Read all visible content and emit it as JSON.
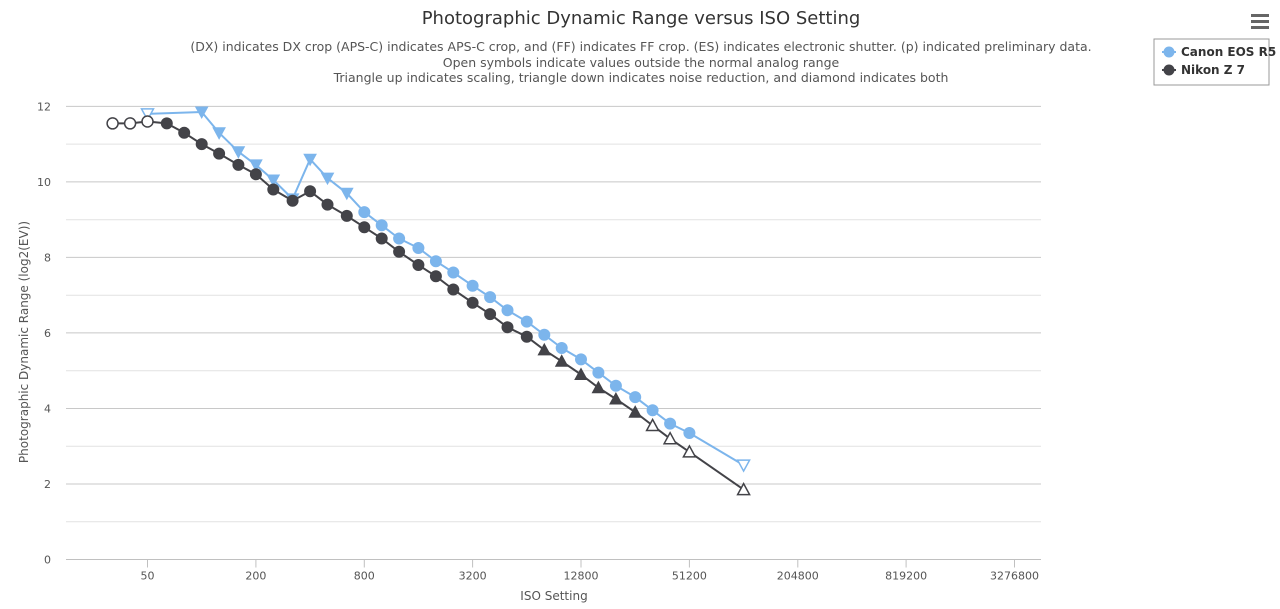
{
  "chart_data": {
    "type": "line",
    "title": "Photographic Dynamic Range versus ISO Setting",
    "subtitle": [
      "(DX) indicates DX crop (APS-C) indicates APS-C crop, and (FF) indicates FF crop. (ES) indicates electronic shutter. (p) indicated preliminary data.",
      "Open symbols indicate values outside the normal analog range",
      "Triangle up indicates scaling, triangle down indicates noise reduction, and diamond indicates both"
    ],
    "xlabel": "ISO Setting",
    "ylabel": "Photographic Dynamic Range (log2(EV))",
    "x_scale": "log2",
    "xlim": [
      25,
      4500000
    ],
    "ylim": [
      0,
      12.5
    ],
    "x_ticks": [
      "50",
      "200",
      "800",
      "3200",
      "12800",
      "51200",
      "204800",
      "819200",
      "3276800"
    ],
    "x_tick_values": [
      50,
      200,
      800,
      3200,
      12800,
      51200,
      204800,
      819200,
      3276800
    ],
    "y_ticks": [
      0,
      2,
      4,
      6,
      8,
      10,
      12
    ],
    "grid": "horizontal",
    "legend_position": "top-right",
    "series": [
      {
        "name": "Canon EOS R5",
        "color": "#7cb5ec",
        "points": [
          {
            "x": 50,
            "y": 11.8,
            "marker": "triangle-down-open"
          },
          {
            "x": 100,
            "y": 11.85,
            "marker": "triangle-down"
          },
          {
            "x": 125,
            "y": 11.3,
            "marker": "triangle-down"
          },
          {
            "x": 160,
            "y": 10.8,
            "marker": "triangle-down"
          },
          {
            "x": 200,
            "y": 10.45,
            "marker": "triangle-down"
          },
          {
            "x": 250,
            "y": 10.05,
            "marker": "triangle-down"
          },
          {
            "x": 320,
            "y": 9.55,
            "marker": "triangle-down"
          },
          {
            "x": 400,
            "y": 10.6,
            "marker": "triangle-down"
          },
          {
            "x": 500,
            "y": 10.1,
            "marker": "triangle-down"
          },
          {
            "x": 640,
            "y": 9.7,
            "marker": "triangle-down"
          },
          {
            "x": 800,
            "y": 9.2,
            "marker": "circle"
          },
          {
            "x": 1000,
            "y": 8.85,
            "marker": "circle"
          },
          {
            "x": 1250,
            "y": 8.5,
            "marker": "circle"
          },
          {
            "x": 1600,
            "y": 8.25,
            "marker": "circle"
          },
          {
            "x": 2000,
            "y": 7.9,
            "marker": "circle"
          },
          {
            "x": 2500,
            "y": 7.6,
            "marker": "circle"
          },
          {
            "x": 3200,
            "y": 7.25,
            "marker": "circle"
          },
          {
            "x": 4000,
            "y": 6.95,
            "marker": "circle"
          },
          {
            "x": 5000,
            "y": 6.6,
            "marker": "circle"
          },
          {
            "x": 6400,
            "y": 6.3,
            "marker": "circle"
          },
          {
            "x": 8000,
            "y": 5.95,
            "marker": "circle"
          },
          {
            "x": 10000,
            "y": 5.6,
            "marker": "circle"
          },
          {
            "x": 12800,
            "y": 5.3,
            "marker": "circle"
          },
          {
            "x": 16000,
            "y": 4.95,
            "marker": "circle"
          },
          {
            "x": 20000,
            "y": 4.6,
            "marker": "circle"
          },
          {
            "x": 25600,
            "y": 4.3,
            "marker": "circle"
          },
          {
            "x": 32000,
            "y": 3.95,
            "marker": "circle"
          },
          {
            "x": 40000,
            "y": 3.6,
            "marker": "circle"
          },
          {
            "x": 51200,
            "y": 3.35,
            "marker": "circle"
          },
          {
            "x": 102400,
            "y": 2.5,
            "marker": "triangle-down-open"
          }
        ]
      },
      {
        "name": "Nikon Z 7",
        "color": "#434348",
        "points": [
          {
            "x": 32,
            "y": 11.55,
            "marker": "circle-open"
          },
          {
            "x": 40,
            "y": 11.55,
            "marker": "circle-open"
          },
          {
            "x": 50,
            "y": 11.6,
            "marker": "circle-open"
          },
          {
            "x": 64,
            "y": 11.55,
            "marker": "circle"
          },
          {
            "x": 80,
            "y": 11.3,
            "marker": "circle"
          },
          {
            "x": 100,
            "y": 11.0,
            "marker": "circle"
          },
          {
            "x": 125,
            "y": 10.75,
            "marker": "circle"
          },
          {
            "x": 160,
            "y": 10.45,
            "marker": "circle"
          },
          {
            "x": 200,
            "y": 10.2,
            "marker": "circle"
          },
          {
            "x": 250,
            "y": 9.8,
            "marker": "circle"
          },
          {
            "x": 320,
            "y": 9.5,
            "marker": "circle"
          },
          {
            "x": 400,
            "y": 9.75,
            "marker": "circle"
          },
          {
            "x": 500,
            "y": 9.4,
            "marker": "circle"
          },
          {
            "x": 640,
            "y": 9.1,
            "marker": "circle"
          },
          {
            "x": 800,
            "y": 8.8,
            "marker": "circle"
          },
          {
            "x": 1000,
            "y": 8.5,
            "marker": "circle"
          },
          {
            "x": 1250,
            "y": 8.15,
            "marker": "circle"
          },
          {
            "x": 1600,
            "y": 7.8,
            "marker": "circle"
          },
          {
            "x": 2000,
            "y": 7.5,
            "marker": "circle"
          },
          {
            "x": 2500,
            "y": 7.15,
            "marker": "circle"
          },
          {
            "x": 3200,
            "y": 6.8,
            "marker": "circle"
          },
          {
            "x": 4000,
            "y": 6.5,
            "marker": "circle"
          },
          {
            "x": 5000,
            "y": 6.15,
            "marker": "circle"
          },
          {
            "x": 6400,
            "y": 5.9,
            "marker": "circle"
          },
          {
            "x": 8000,
            "y": 5.55,
            "marker": "triangle-up"
          },
          {
            "x": 10000,
            "y": 5.25,
            "marker": "triangle-up"
          },
          {
            "x": 12800,
            "y": 4.9,
            "marker": "triangle-up"
          },
          {
            "x": 16000,
            "y": 4.55,
            "marker": "triangle-up"
          },
          {
            "x": 20000,
            "y": 4.25,
            "marker": "triangle-up"
          },
          {
            "x": 25600,
            "y": 3.9,
            "marker": "triangle-up"
          },
          {
            "x": 32000,
            "y": 3.55,
            "marker": "triangle-up-open"
          },
          {
            "x": 40000,
            "y": 3.2,
            "marker": "triangle-up-open"
          },
          {
            "x": 51200,
            "y": 2.85,
            "marker": "triangle-up-open"
          },
          {
            "x": 102400,
            "y": 1.85,
            "marker": "triangle-up-open"
          }
        ]
      }
    ]
  },
  "menu": {
    "icon": "hamburger-menu-icon"
  }
}
